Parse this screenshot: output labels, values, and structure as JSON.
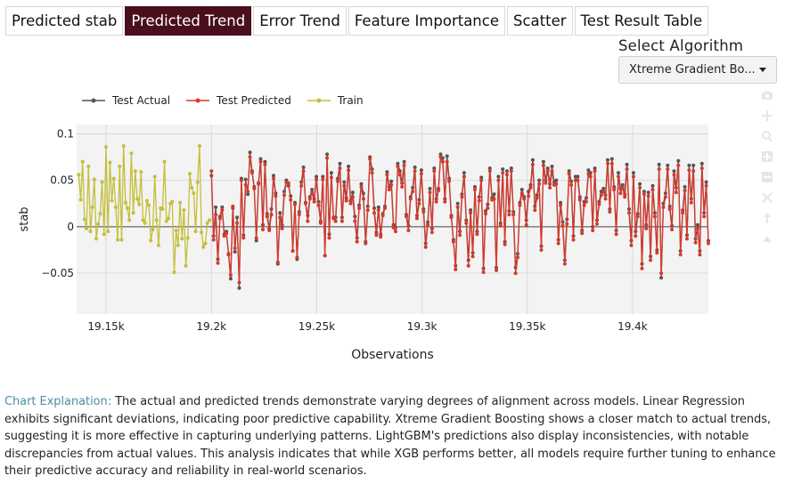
{
  "tabs": [
    {
      "label": "Predicted stab",
      "active": false
    },
    {
      "label": "Predicted Trend",
      "active": true
    },
    {
      "label": "Error Trend",
      "active": false
    },
    {
      "label": "Feature Importance",
      "active": false
    },
    {
      "label": "Scatter",
      "active": false
    },
    {
      "label": "Test Result Table",
      "active": false
    }
  ],
  "algorithm": {
    "label": "Select Algorithm",
    "selected": "Xtreme Gradient Bo..."
  },
  "modebar": {
    "icons": [
      "camera-icon",
      "zoom-plus-icon",
      "magnifier-icon",
      "zoom-in-icon",
      "zoom-out-icon",
      "autoscale-icon",
      "reset-axes-icon",
      "spike-lines-icon"
    ]
  },
  "explanation": {
    "lead": "Chart Explanation:",
    "body": "The actual and predicted trends demonstrate varying degrees of alignment across models. Linear Regression exhibits significant deviations, indicating poor predictive capability. Xtreme Gradient Boosting shows a closer match to actual trends, suggesting it is more effective in capturing underlying patterns. LightGBM's predictions also display inconsistencies, with notable discrepancies from actual values. This analysis indicates that while XGB performs better, all models require further tuning to enhance their predictive accuracy and reliability in real-world scenarios."
  },
  "chart_data": {
    "type": "line",
    "title": "",
    "xlabel": "Observations",
    "ylabel": "stab",
    "xlim": [
      19136,
      19436
    ],
    "ylim": [
      -0.094,
      0.11
    ],
    "x_ticks": [
      {
        "value": 19150,
        "label": "19.15k"
      },
      {
        "value": 19200,
        "label": "19.2k"
      },
      {
        "value": 19250,
        "label": "19.25k"
      },
      {
        "value": 19300,
        "label": "19.3k"
      },
      {
        "value": 19350,
        "label": "19.35k"
      },
      {
        "value": 19400,
        "label": "19.4k"
      }
    ],
    "y_ticks": [
      {
        "value": 0.1,
        "label": "0.1"
      },
      {
        "value": 0.05,
        "label": "0.05"
      },
      {
        "value": 0,
        "label": "0"
      },
      {
        "value": -0.05,
        "label": "−0.05"
      }
    ],
    "legend_position": "top-left",
    "colors": {
      "test_actual": "#555555",
      "test_predicted": "#d9382b",
      "train": "#c4bf3a"
    },
    "series": [
      {
        "name": "Train",
        "x_start": 19137,
        "x_end": 19199,
        "values": [
          0.056,
          0.029,
          0.07,
          0.008,
          -0.002,
          0.065,
          -0.005,
          0.021,
          0.051,
          -0.013,
          0.003,
          0.014,
          0.048,
          -0.008,
          0.086,
          -0.005,
          0.069,
          0.028,
          0.052,
          0.021,
          -0.014,
          0.065,
          -0.014,
          0.087,
          0.026,
          0.02,
          0.007,
          0.079,
          0.015,
          0.06,
          0.03,
          0.024,
          0.059,
          0.007,
          0.004,
          0.028,
          0.023,
          -0.015,
          -0.003,
          0.054,
          0.007,
          -0.02,
          0.02,
          0.019,
          0.07,
          0.006,
          0.009,
          0.025,
          0.027,
          -0.049,
          -0.004,
          -0.02,
          0.026,
          -0.013,
          0.018,
          -0.042,
          -0.012,
          0.057,
          0.042,
          0.036,
          -0.005,
          0.048,
          0.087,
          -0.006,
          -0.022,
          -0.018,
          0.004,
          0.007
        ]
      },
      {
        "name": "Test Actual",
        "x_start": 19200,
        "x_end": 19436,
        "values": [
          0.055,
          -0.01,
          0.021,
          -0.035,
          0.011,
          0.021,
          -0.008,
          -0.005,
          -0.03,
          -0.056,
          0.02,
          -0.027,
          0.01,
          -0.066,
          0.052,
          -0.009,
          0.051,
          0.035,
          0.08,
          0.06,
          0.043,
          -0.015,
          0.047,
          0.073,
          0.002,
          0.07,
          0.014,
          -0.002,
          0.019,
          0.055,
          0.036,
          -0.04,
          0.015,
          0.002,
          0.038,
          0.05,
          0.044,
          0.033,
          -0.026,
          0.026,
          -0.035,
          0.016,
          0.048,
          0.064,
          0.026,
          0.012,
          0.032,
          0.04,
          0.03,
          0.054,
          0.027,
          0.006,
          0.054,
          -0.031,
          0.078,
          -0.008,
          0.058,
          0.01,
          0.01,
          0.052,
          0.068,
          0.01,
          0.048,
          0.031,
          0.065,
          0.028,
          0.037,
          0.011,
          -0.012,
          0.023,
          0.046,
          0.036,
          -0.016,
          0.022,
          0.075,
          0.062,
          0.02,
          -0.006,
          0.021,
          -0.008,
          0.014,
          0.022,
          0.059,
          0.043,
          0.049,
          0.002,
          -0.001,
          0.068,
          0.06,
          0.047,
          0.07,
          0.013,
          0.001,
          0.032,
          0.042,
          0.064,
          0.012,
          0.029,
          0.061,
          0.019,
          -0.018,
          0.005,
          0.041,
          -0.002,
          0.063,
          0.03,
          0.041,
          0.078,
          0.074,
          0.03,
          0.076,
          0.052,
          0.012,
          -0.014,
          -0.042,
          0.025,
          -0.005,
          0.035,
          0.058,
          0.007,
          -0.036,
          0.018,
          -0.028,
          0.043,
          -0.005,
          0.032,
          0.053,
          -0.045,
          0.017,
          0.024,
          0.063,
          0.031,
          0.035,
          -0.044,
          0.054,
          0.004,
          0.062,
          -0.016,
          0.06,
          0.017,
          0.063,
          0.016,
          -0.044,
          -0.029,
          0.026,
          0.04,
          0.032,
          0.007,
          0.038,
          0.045,
          0.072,
          0.022,
          0.034,
          0.05,
          -0.021,
          0.07,
          0.05,
          0.063,
          0.046,
          0.065,
          0.048,
          0.05,
          -0.014,
          0.026,
          0.005,
          -0.036,
          0.008,
          0.06,
          0.049,
          -0.01,
          0.054,
          0.054,
          0.032,
          -0.004,
          0.027,
          0.031,
          0.061,
          0.058,
          0.0,
          0.063,
          0.007,
          0.027,
          0.038,
          0.041,
          0.034,
          0.072,
          0.019,
          0.073,
          0.043,
          -0.004,
          0.058,
          0.041,
          0.045,
          0.035,
          0.067,
          0.019,
          -0.015,
          0.058,
          -0.005,
          0.014,
          0.046,
          -0.04,
          0.038,
          0.002,
          0.037,
          -0.032,
          0.044,
          0.015,
          -0.025,
          0.067,
          -0.055,
          0.025,
          0.036,
          0.066,
          0.022,
          0.001,
          0.06,
          0.042,
          0.071,
          -0.026,
          0.018,
          0.043,
          -0.009,
          0.066,
          0.03,
          0.066,
          -0.013,
          0.002,
          -0.026,
          0.068,
          0.015,
          0.048,
          -0.015
        ]
      },
      {
        "name": "Test Predicted",
        "x_start": 19200,
        "x_end": 19436,
        "values": [
          0.06,
          -0.014,
          0.013,
          -0.039,
          0.009,
          0.018,
          -0.01,
          -0.007,
          -0.029,
          -0.052,
          0.022,
          -0.023,
          0.004,
          -0.06,
          0.05,
          -0.012,
          0.045,
          0.038,
          0.075,
          0.058,
          0.041,
          -0.012,
          0.046,
          0.07,
          -0.003,
          0.067,
          0.011,
          -0.004,
          0.013,
          0.052,
          0.033,
          -0.038,
          0.01,
          -0.002,
          0.034,
          0.048,
          0.047,
          0.029,
          -0.026,
          0.024,
          -0.033,
          0.013,
          0.044,
          0.06,
          0.025,
          0.006,
          0.03,
          0.037,
          0.027,
          0.051,
          0.023,
          0.004,
          0.051,
          -0.031,
          0.074,
          -0.012,
          0.053,
          0.009,
          0.006,
          0.049,
          0.063,
          0.006,
          0.044,
          0.028,
          0.061,
          0.025,
          0.032,
          0.006,
          -0.016,
          0.02,
          0.043,
          0.03,
          -0.018,
          0.018,
          0.073,
          0.058,
          0.015,
          -0.009,
          0.018,
          -0.011,
          0.012,
          0.02,
          0.056,
          0.04,
          0.045,
          -0.001,
          -0.005,
          0.065,
          0.056,
          0.043,
          0.066,
          0.011,
          -0.004,
          0.03,
          0.038,
          0.06,
          0.009,
          0.025,
          0.057,
          0.016,
          -0.022,
          0.002,
          0.037,
          -0.006,
          0.06,
          0.027,
          0.039,
          0.075,
          0.07,
          0.027,
          0.07,
          0.049,
          0.01,
          -0.016,
          -0.046,
          0.021,
          -0.009,
          0.032,
          0.054,
          0.004,
          -0.042,
          0.015,
          -0.032,
          0.04,
          -0.008,
          0.028,
          0.05,
          -0.049,
          0.014,
          0.02,
          0.06,
          0.029,
          0.03,
          -0.047,
          0.05,
          0.001,
          0.058,
          -0.019,
          0.056,
          0.013,
          0.06,
          0.013,
          -0.05,
          -0.033,
          0.023,
          0.036,
          0.03,
          0.002,
          0.033,
          0.042,
          0.067,
          0.018,
          0.031,
          0.046,
          -0.025,
          0.066,
          0.047,
          0.06,
          0.042,
          0.06,
          0.045,
          0.046,
          -0.018,
          0.023,
          0.001,
          -0.04,
          0.003,
          0.057,
          0.045,
          -0.014,
          0.05,
          0.05,
          0.029,
          -0.007,
          0.023,
          0.027,
          0.057,
          0.054,
          -0.004,
          0.06,
          0.003,
          0.024,
          0.034,
          0.038,
          0.03,
          0.068,
          0.016,
          0.068,
          0.04,
          -0.008,
          0.054,
          0.036,
          0.042,
          0.032,
          0.062,
          0.015,
          -0.02,
          0.054,
          -0.01,
          0.011,
          0.042,
          -0.045,
          0.035,
          -0.002,
          0.033,
          -0.036,
          0.04,
          0.011,
          -0.028,
          0.062,
          -0.05,
          0.021,
          0.032,
          0.062,
          0.019,
          -0.003,
          0.056,
          0.037,
          0.066,
          -0.03,
          0.015,
          0.039,
          -0.013,
          0.061,
          0.026,
          0.06,
          -0.017,
          -0.002,
          -0.03,
          0.063,
          0.011,
          0.044,
          -0.018
        ]
      }
    ]
  }
}
